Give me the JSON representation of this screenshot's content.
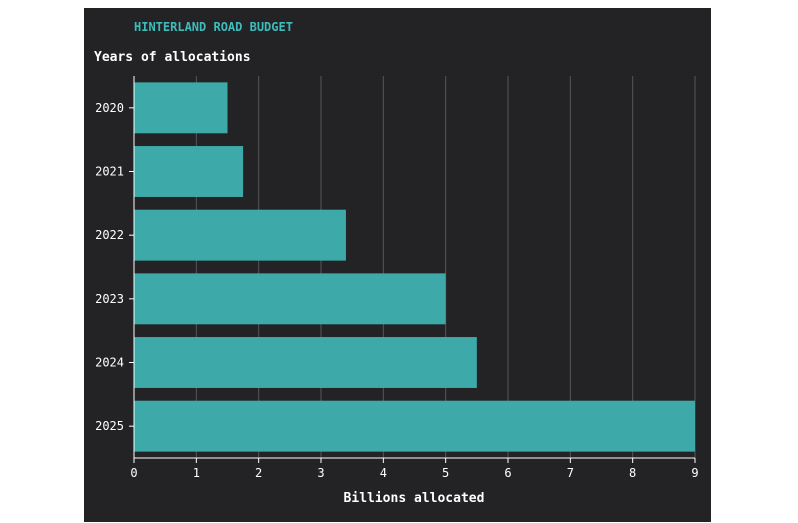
{
  "colors": {
    "background": "#232326",
    "title": "#3dbcbc",
    "text": "#ffffff",
    "bar": "#3ea9a9",
    "grid": "#55555c",
    "axis": "#ffffff"
  },
  "chart_data": {
    "type": "bar",
    "orientation": "horizontal",
    "title": "HINTERLAND ROAD BUDGET",
    "ylabel": "Years of allocations",
    "xlabel": "Billions allocated",
    "categories": [
      "2020",
      "2021",
      "2022",
      "2023",
      "2024",
      "2025"
    ],
    "values": [
      1.5,
      1.75,
      3.4,
      5.0,
      5.5,
      9.0
    ],
    "xlim": [
      0,
      9
    ],
    "xticks": [
      "0",
      "1",
      "2",
      "3",
      "4",
      "5",
      "6",
      "7",
      "8",
      "9"
    ],
    "grid": "vertical",
    "legend": "none"
  }
}
